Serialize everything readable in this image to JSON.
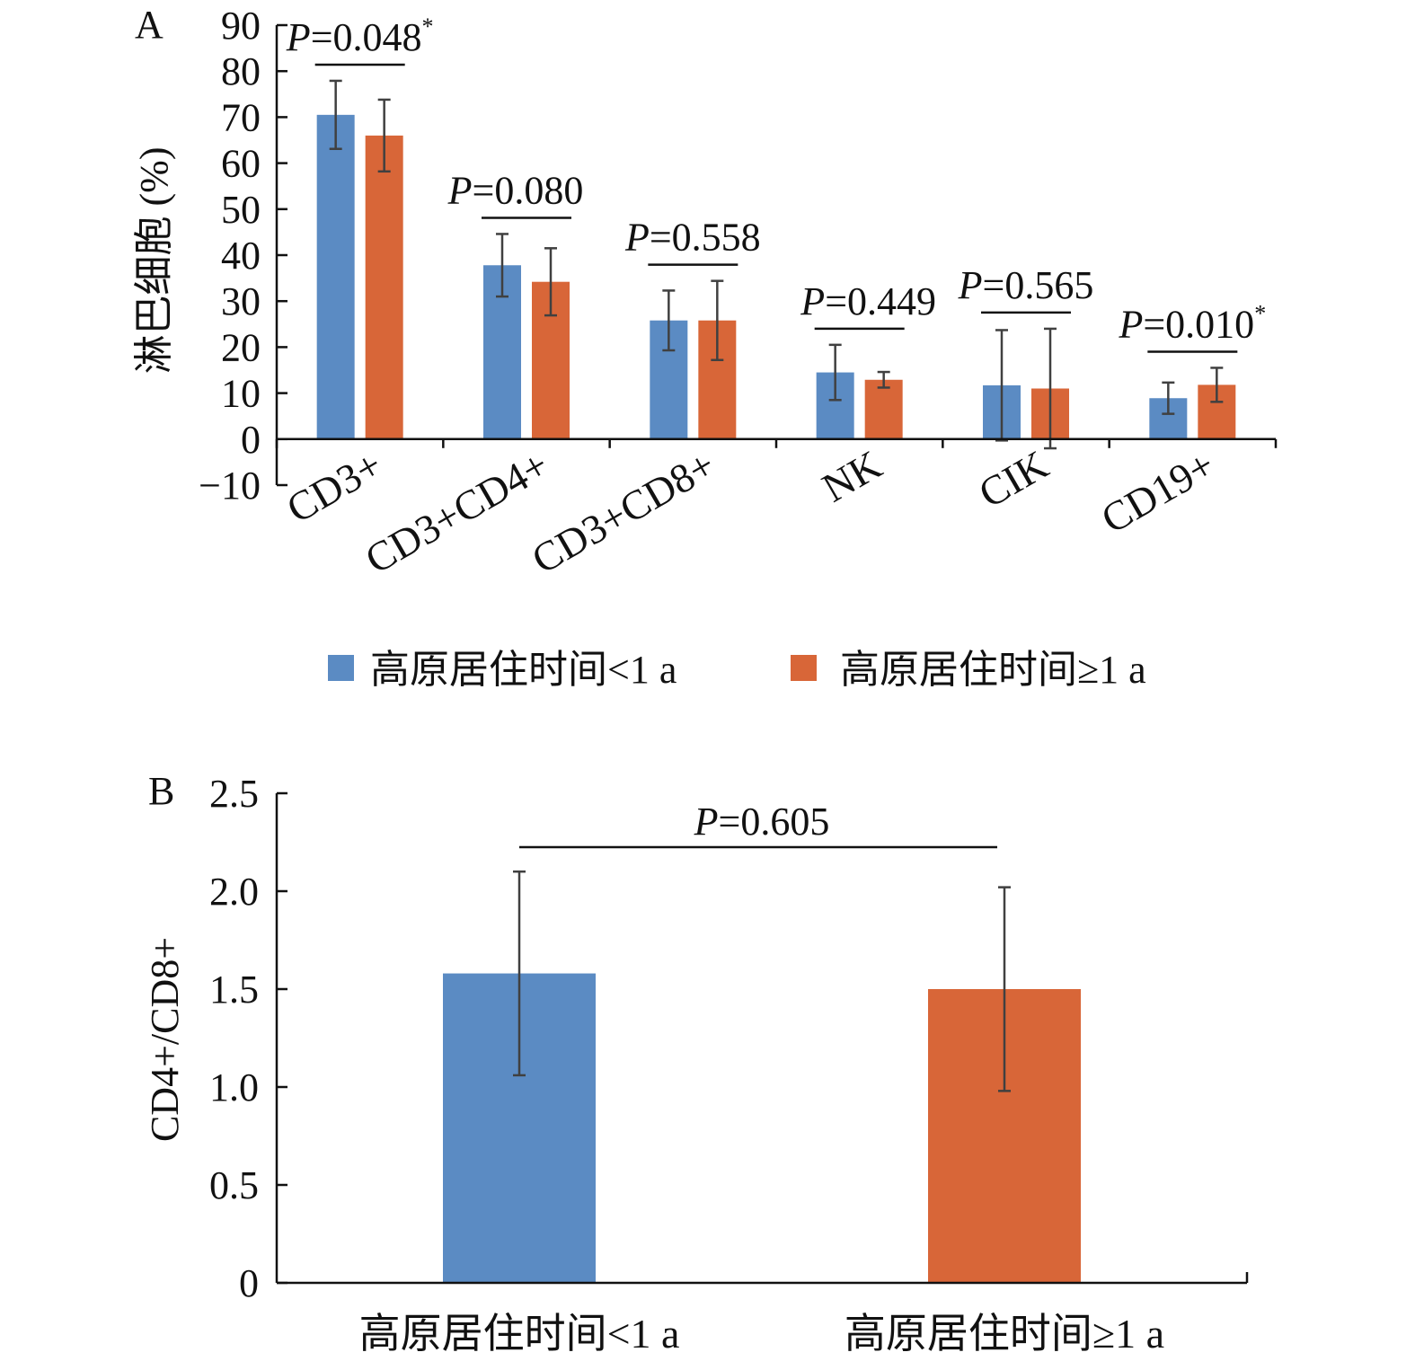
{
  "chart_data": [
    {
      "panel": "A",
      "type": "bar",
      "ylabel": "淋巴细胞 (%)",
      "ylim": [
        -10,
        90
      ],
      "yticks": [
        -10,
        0,
        10,
        20,
        30,
        40,
        50,
        60,
        70,
        80,
        90
      ],
      "categories": [
        "CD3+",
        "CD3+CD4+",
        "CD3+CD8+",
        "NK",
        "CIK",
        "CD19+"
      ],
      "series": [
        {
          "name": "高原居住时间<1 a",
          "color": "#5b8bc3",
          "values": [
            70.5,
            37.8,
            25.8,
            14.5,
            11.7,
            8.9
          ],
          "errors": [
            7.4,
            6.8,
            6.5,
            6.0,
            12.0,
            3.4
          ]
        },
        {
          "name": "高原居住时间≥1 a",
          "color": "#d86638",
          "values": [
            66.0,
            34.2,
            25.8,
            12.9,
            11.0,
            11.8
          ],
          "errors": [
            7.8,
            7.3,
            8.6,
            1.7,
            13.0,
            3.7
          ]
        }
      ],
      "p_values": [
        {
          "label": "P",
          "value": "=0.048",
          "mark": "*"
        },
        {
          "label": "P",
          "value": "=0.080",
          "mark": ""
        },
        {
          "label": "P",
          "value": "=0.558",
          "mark": ""
        },
        {
          "label": "P",
          "value": "=0.449",
          "mark": ""
        },
        {
          "label": "P",
          "value": "=0.565",
          "mark": ""
        },
        {
          "label": "P",
          "value": "=0.010",
          "mark": "*"
        }
      ],
      "legend": {
        "placement": "bottom"
      }
    },
    {
      "panel": "B",
      "type": "bar",
      "ylabel": "CD4+/CD8+",
      "ylim": [
        0,
        2.5
      ],
      "yticks": [
        "0",
        "0.5",
        "1.0",
        "1.5",
        "2.0",
        "2.5"
      ],
      "categories": [
        "高原居住时间<1 a",
        "高原居住时间≥1 a"
      ],
      "colors": [
        "#5b8bc3",
        "#d86638"
      ],
      "values": [
        1.58,
        1.5
      ],
      "errors": [
        0.52,
        0.52
      ],
      "p_value": {
        "label": "P",
        "value": "=0.605"
      }
    }
  ]
}
